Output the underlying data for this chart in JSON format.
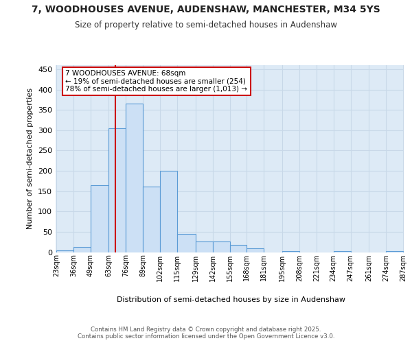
{
  "title_line1": "7, WOODHOUSES AVENUE, AUDENSHAW, MANCHESTER, M34 5YS",
  "title_line2": "Size of property relative to semi-detached houses in Audenshaw",
  "xlabel": "Distribution of semi-detached houses by size in Audenshaw",
  "ylabel": "Number of semi-detached properties",
  "bin_edges": [
    23,
    36,
    49,
    63,
    76,
    89,
    102,
    115,
    129,
    142,
    155,
    168,
    181,
    195,
    208,
    221,
    234,
    247,
    261,
    274,
    287
  ],
  "bar_heights": [
    5,
    13,
    165,
    305,
    365,
    162,
    200,
    45,
    27,
    27,
    18,
    10,
    0,
    2,
    0,
    0,
    3,
    0,
    0,
    3
  ],
  "bar_color": "#cce0f5",
  "bar_edge_color": "#5b9bd5",
  "property_size": 68,
  "property_label": "7 WOODHOUSES AVENUE: 68sqm",
  "pct_smaller": 19,
  "pct_larger": 78,
  "count_smaller": 254,
  "count_larger": 1013,
  "vline_color": "#cc0000",
  "annotation_box_color": "#cc0000",
  "grid_color": "#c8d8e8",
  "background_color": "#ddeaf6",
  "footer_line1": "Contains HM Land Registry data © Crown copyright and database right 2025.",
  "footer_line2": "Contains public sector information licensed under the Open Government Licence v3.0.",
  "ylim_max": 460,
  "yticks": [
    0,
    50,
    100,
    150,
    200,
    250,
    300,
    350,
    400,
    450
  ],
  "tick_labels": [
    "23sqm",
    "36sqm",
    "49sqm",
    "63sqm",
    "76sqm",
    "89sqm",
    "102sqm",
    "115sqm",
    "129sqm",
    "142sqm",
    "155sqm",
    "168sqm",
    "181sqm",
    "195sqm",
    "208sqm",
    "221sqm",
    "234sqm",
    "247sqm",
    "261sqm",
    "274sqm",
    "287sqm"
  ]
}
